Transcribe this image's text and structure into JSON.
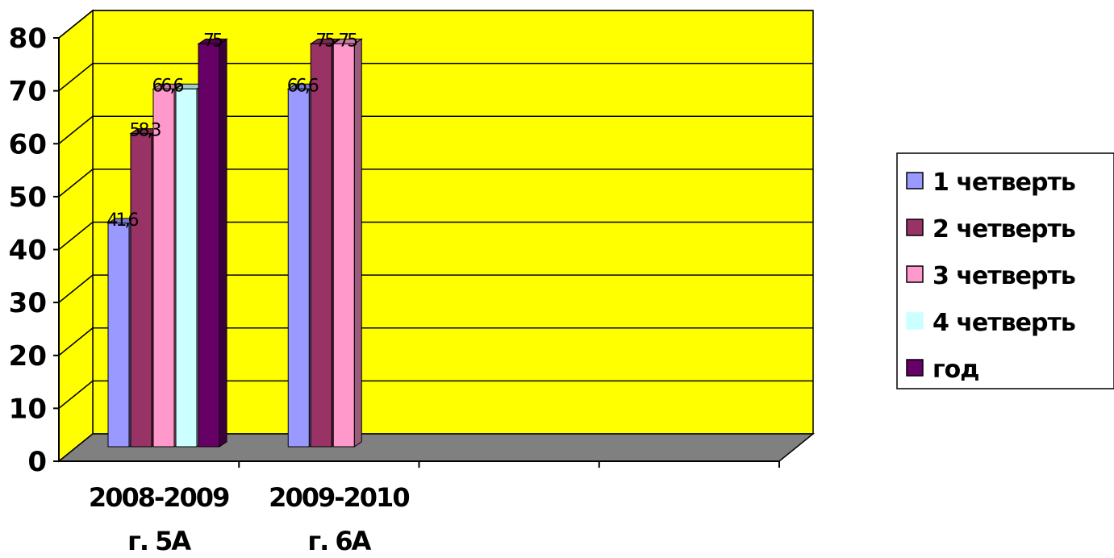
{
  "chart_data": {
    "type": "bar",
    "title": "",
    "xlabel": "",
    "ylabel": "",
    "categories": [
      [
        "2008-2009",
        "г.   5А"
      ],
      [
        "2009-2010",
        "г.   6А"
      ],
      [
        "",
        ""
      ],
      [
        "",
        ""
      ]
    ],
    "y_ticks": [
      "0",
      "10",
      "20",
      "30",
      "40",
      "50",
      "60",
      "70",
      "80"
    ],
    "ylim": [
      0,
      80
    ],
    "grid": true,
    "legend_position": "right",
    "series": [
      {
        "name": "1 четверть",
        "color": "#9999FF",
        "values": [
          41.6,
          66.6,
          null,
          null
        ],
        "labels": [
          "41,6",
          "66,6",
          null,
          null
        ]
      },
      {
        "name": "2 четверть",
        "color": "#993366",
        "values": [
          58.3,
          75,
          null,
          null
        ],
        "labels": [
          "58,3",
          "75",
          null,
          null
        ]
      },
      {
        "name": "3 четверть",
        "color": "#FF99CC",
        "values": [
          66.6,
          75,
          null,
          null
        ],
        "labels": [
          "66,6",
          "75",
          null,
          null
        ]
      },
      {
        "name": "4 четверть",
        "color": "#CCFFFF",
        "values": [
          66.6,
          null,
          null,
          null
        ],
        "labels": [
          null,
          null,
          null,
          null
        ]
      },
      {
        "name": "год",
        "color": "#660066",
        "values": [
          75,
          null,
          null,
          null
        ],
        "labels": [
          "75",
          null,
          null,
          null
        ]
      }
    ],
    "wall_color": "#FFFF00",
    "floor_color": "#808080"
  }
}
